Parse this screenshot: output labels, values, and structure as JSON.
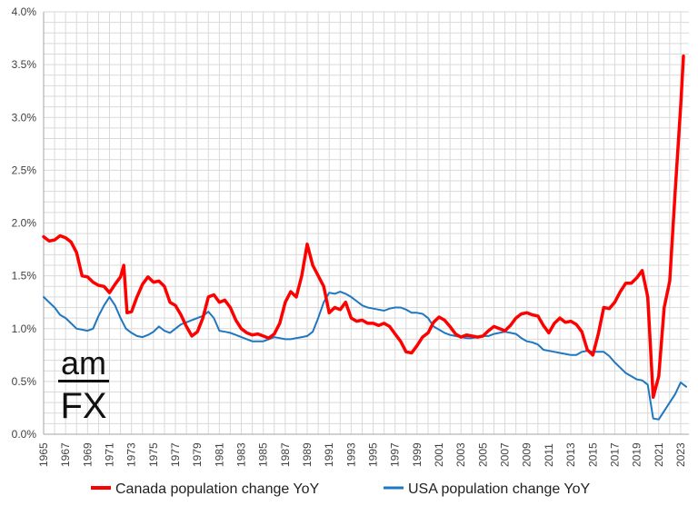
{
  "chart_data": {
    "type": "line",
    "title": "",
    "xlabel": "",
    "ylabel": "",
    "x_range": [
      1965,
      2023.75
    ],
    "ylim": [
      0,
      4
    ],
    "y_tick_values": [
      0,
      0.5,
      1,
      1.5,
      2,
      2.5,
      3,
      3.5,
      4
    ],
    "y_tick_labels": [
      "0.0%",
      "0.5%",
      "1.0%",
      "1.5%",
      "2.0%",
      "2.5%",
      "3.0%",
      "3.5%",
      "4.0%"
    ],
    "x_tick_labels": [
      "1965",
      "1967",
      "1969",
      "1971",
      "1973",
      "1975",
      "1977",
      "1979",
      "1981",
      "1983",
      "1985",
      "1987",
      "1989",
      "1991",
      "1993",
      "1995",
      "1997",
      "1999",
      "2001",
      "2003",
      "2005",
      "2007",
      "2009",
      "2011",
      "2013",
      "2015",
      "2017",
      "2019",
      "2021",
      "2023"
    ],
    "grid": true,
    "legend_position": "bottom",
    "series": [
      {
        "name": "Canada population change YoY",
        "color": "#ff0000",
        "points": [
          [
            1965,
            1.87
          ],
          [
            1965.5,
            1.83
          ],
          [
            1966,
            1.84
          ],
          [
            1966.5,
            1.88
          ],
          [
            1967,
            1.86
          ],
          [
            1967.5,
            1.82
          ],
          [
            1968,
            1.72
          ],
          [
            1968.5,
            1.5
          ],
          [
            1969,
            1.49
          ],
          [
            1969.5,
            1.44
          ],
          [
            1970,
            1.41
          ],
          [
            1970.5,
            1.4
          ],
          [
            1971,
            1.34
          ],
          [
            1971.5,
            1.42
          ],
          [
            1972,
            1.49
          ],
          [
            1972.3,
            1.6
          ],
          [
            1972.6,
            1.15
          ],
          [
            1973,
            1.16
          ],
          [
            1973.5,
            1.3
          ],
          [
            1974,
            1.42
          ],
          [
            1974.5,
            1.49
          ],
          [
            1975,
            1.44
          ],
          [
            1975.5,
            1.45
          ],
          [
            1976,
            1.4
          ],
          [
            1976.5,
            1.25
          ],
          [
            1977,
            1.22
          ],
          [
            1977.5,
            1.13
          ],
          [
            1978,
            1.02
          ],
          [
            1978.5,
            0.93
          ],
          [
            1979,
            0.97
          ],
          [
            1979.5,
            1.1
          ],
          [
            1980,
            1.3
          ],
          [
            1980.5,
            1.32
          ],
          [
            1981,
            1.25
          ],
          [
            1981.5,
            1.27
          ],
          [
            1982,
            1.2
          ],
          [
            1982.5,
            1.08
          ],
          [
            1983,
            1.0
          ],
          [
            1983.5,
            0.96
          ],
          [
            1984,
            0.94
          ],
          [
            1984.5,
            0.95
          ],
          [
            1985,
            0.93
          ],
          [
            1985.5,
            0.91
          ],
          [
            1986,
            0.95
          ],
          [
            1986.5,
            1.05
          ],
          [
            1987,
            1.25
          ],
          [
            1987.5,
            1.35
          ],
          [
            1988,
            1.3
          ],
          [
            1988.5,
            1.5
          ],
          [
            1989,
            1.8
          ],
          [
            1989.5,
            1.6
          ],
          [
            1990,
            1.5
          ],
          [
            1990.5,
            1.4
          ],
          [
            1991,
            1.15
          ],
          [
            1991.5,
            1.2
          ],
          [
            1992,
            1.18
          ],
          [
            1992.5,
            1.25
          ],
          [
            1993,
            1.1
          ],
          [
            1993.5,
            1.07
          ],
          [
            1994,
            1.08
          ],
          [
            1994.5,
            1.05
          ],
          [
            1995,
            1.05
          ],
          [
            1995.5,
            1.03
          ],
          [
            1996,
            1.05
          ],
          [
            1996.5,
            1.02
          ],
          [
            1997,
            0.95
          ],
          [
            1997.5,
            0.88
          ],
          [
            1998,
            0.78
          ],
          [
            1998.5,
            0.77
          ],
          [
            1999,
            0.84
          ],
          [
            1999.5,
            0.92
          ],
          [
            2000,
            0.96
          ],
          [
            2000.5,
            1.06
          ],
          [
            2001,
            1.11
          ],
          [
            2001.5,
            1.08
          ],
          [
            2002,
            1.02
          ],
          [
            2002.5,
            0.95
          ],
          [
            2003,
            0.92
          ],
          [
            2003.5,
            0.94
          ],
          [
            2004,
            0.93
          ],
          [
            2004.5,
            0.92
          ],
          [
            2005,
            0.93
          ],
          [
            2005.5,
            0.98
          ],
          [
            2006,
            1.02
          ],
          [
            2006.5,
            1.0
          ],
          [
            2007,
            0.98
          ],
          [
            2007.5,
            1.03
          ],
          [
            2008,
            1.1
          ],
          [
            2008.5,
            1.14
          ],
          [
            2009,
            1.15
          ],
          [
            2009.5,
            1.13
          ],
          [
            2010,
            1.12
          ],
          [
            2010.5,
            1.03
          ],
          [
            2011,
            0.96
          ],
          [
            2011.5,
            1.05
          ],
          [
            2012,
            1.1
          ],
          [
            2012.5,
            1.06
          ],
          [
            2013,
            1.07
          ],
          [
            2013.5,
            1.04
          ],
          [
            2014,
            0.97
          ],
          [
            2014.5,
            0.8
          ],
          [
            2015,
            0.75
          ],
          [
            2015.5,
            0.95
          ],
          [
            2016,
            1.2
          ],
          [
            2016.5,
            1.19
          ],
          [
            2017,
            1.25
          ],
          [
            2017.5,
            1.35
          ],
          [
            2018,
            1.43
          ],
          [
            2018.5,
            1.43
          ],
          [
            2019,
            1.48
          ],
          [
            2019.5,
            1.55
          ],
          [
            2020,
            1.3
          ],
          [
            2020.5,
            0.35
          ],
          [
            2021,
            0.55
          ],
          [
            2021.5,
            1.2
          ],
          [
            2022,
            1.45
          ],
          [
            2022.5,
            2.3
          ],
          [
            2023,
            3.1
          ],
          [
            2023.25,
            3.58
          ]
        ]
      },
      {
        "name": "USA population change YoY",
        "color": "#1f77c0",
        "points": [
          [
            1965,
            1.3
          ],
          [
            1965.5,
            1.25
          ],
          [
            1966,
            1.2
          ],
          [
            1966.5,
            1.13
          ],
          [
            1967,
            1.1
          ],
          [
            1967.5,
            1.05
          ],
          [
            1968,
            1.0
          ],
          [
            1968.5,
            0.99
          ],
          [
            1969,
            0.98
          ],
          [
            1969.5,
            1.0
          ],
          [
            1970,
            1.12
          ],
          [
            1970.5,
            1.22
          ],
          [
            1971,
            1.3
          ],
          [
            1971.5,
            1.22
          ],
          [
            1972,
            1.1
          ],
          [
            1972.5,
            1.0
          ],
          [
            1973,
            0.96
          ],
          [
            1973.5,
            0.93
          ],
          [
            1974,
            0.92
          ],
          [
            1974.5,
            0.94
          ],
          [
            1975,
            0.97
          ],
          [
            1975.5,
            1.02
          ],
          [
            1976,
            0.98
          ],
          [
            1976.5,
            0.96
          ],
          [
            1977,
            1.0
          ],
          [
            1977.5,
            1.04
          ],
          [
            1978,
            1.06
          ],
          [
            1978.5,
            1.08
          ],
          [
            1979,
            1.1
          ],
          [
            1979.5,
            1.12
          ],
          [
            1980,
            1.16
          ],
          [
            1980.5,
            1.1
          ],
          [
            1981,
            0.98
          ],
          [
            1981.5,
            0.97
          ],
          [
            1982,
            0.96
          ],
          [
            1982.5,
            0.94
          ],
          [
            1983,
            0.92
          ],
          [
            1983.5,
            0.9
          ],
          [
            1984,
            0.88
          ],
          [
            1984.5,
            0.88
          ],
          [
            1985,
            0.88
          ],
          [
            1985.5,
            0.9
          ],
          [
            1986,
            0.92
          ],
          [
            1986.5,
            0.91
          ],
          [
            1987,
            0.9
          ],
          [
            1987.5,
            0.9
          ],
          [
            1988,
            0.91
          ],
          [
            1988.5,
            0.92
          ],
          [
            1989,
            0.93
          ],
          [
            1989.5,
            0.97
          ],
          [
            1990,
            1.1
          ],
          [
            1990.5,
            1.25
          ],
          [
            1991,
            1.34
          ],
          [
            1991.5,
            1.33
          ],
          [
            1992,
            1.35
          ],
          [
            1992.5,
            1.33
          ],
          [
            1993,
            1.3
          ],
          [
            1993.5,
            1.26
          ],
          [
            1994,
            1.22
          ],
          [
            1994.5,
            1.2
          ],
          [
            1995,
            1.19
          ],
          [
            1995.5,
            1.18
          ],
          [
            1996,
            1.17
          ],
          [
            1996.5,
            1.19
          ],
          [
            1997,
            1.2
          ],
          [
            1997.5,
            1.2
          ],
          [
            1998,
            1.18
          ],
          [
            1998.5,
            1.15
          ],
          [
            1999,
            1.15
          ],
          [
            1999.5,
            1.14
          ],
          [
            2000,
            1.1
          ],
          [
            2000.5,
            1.02
          ],
          [
            2001,
            0.99
          ],
          [
            2001.5,
            0.96
          ],
          [
            2002,
            0.94
          ],
          [
            2002.5,
            0.93
          ],
          [
            2003,
            0.92
          ],
          [
            2003.5,
            0.91
          ],
          [
            2004,
            0.91
          ],
          [
            2004.5,
            0.92
          ],
          [
            2005,
            0.93
          ],
          [
            2005.5,
            0.93
          ],
          [
            2006,
            0.95
          ],
          [
            2006.5,
            0.96
          ],
          [
            2007,
            0.97
          ],
          [
            2007.5,
            0.96
          ],
          [
            2008,
            0.95
          ],
          [
            2008.5,
            0.91
          ],
          [
            2009,
            0.88
          ],
          [
            2009.5,
            0.87
          ],
          [
            2010,
            0.85
          ],
          [
            2010.5,
            0.8
          ],
          [
            2011,
            0.79
          ],
          [
            2011.5,
            0.78
          ],
          [
            2012,
            0.77
          ],
          [
            2012.5,
            0.76
          ],
          [
            2013,
            0.75
          ],
          [
            2013.5,
            0.75
          ],
          [
            2014,
            0.78
          ],
          [
            2014.5,
            0.79
          ],
          [
            2015,
            0.78
          ],
          [
            2015.5,
            0.78
          ],
          [
            2016,
            0.78
          ],
          [
            2016.5,
            0.74
          ],
          [
            2017,
            0.68
          ],
          [
            2017.5,
            0.63
          ],
          [
            2018,
            0.58
          ],
          [
            2018.5,
            0.55
          ],
          [
            2019,
            0.52
          ],
          [
            2019.5,
            0.51
          ],
          [
            2020,
            0.47
          ],
          [
            2020.5,
            0.15
          ],
          [
            2021,
            0.14
          ],
          [
            2021.5,
            0.22
          ],
          [
            2022,
            0.3
          ],
          [
            2022.5,
            0.38
          ],
          [
            2023,
            0.49
          ],
          [
            2023.5,
            0.45
          ]
        ]
      }
    ]
  },
  "logo": {
    "top": "am",
    "bottom": "FX"
  }
}
